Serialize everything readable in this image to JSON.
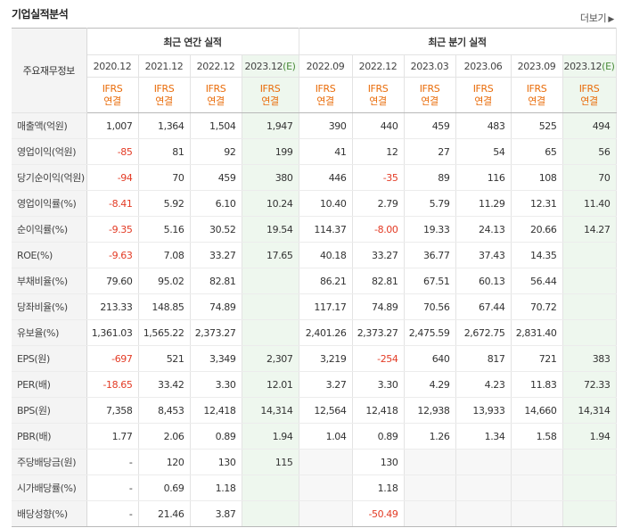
{
  "header": {
    "title": "기업실적분석",
    "more_label": "더보기",
    "more_arrow": "▶"
  },
  "table": {
    "corner_label": "주요재무정보",
    "groups": {
      "annual": "최근 연간 실적",
      "quarterly": "최근 분기 실적"
    },
    "periods": [
      {
        "label": "2020.12",
        "est": false
      },
      {
        "label": "2021.12",
        "est": false
      },
      {
        "label": "2022.12",
        "est": false
      },
      {
        "label": "2023.12",
        "est_suffix": "(E)",
        "est": true
      },
      {
        "label": "2022.09",
        "est": false
      },
      {
        "label": "2022.12",
        "est": false
      },
      {
        "label": "2023.03",
        "est": false
      },
      {
        "label": "2023.06",
        "est": false
      },
      {
        "label": "2023.09",
        "est": false
      },
      {
        "label": "2023.12",
        "est_suffix": "(E)",
        "est": true
      }
    ],
    "basis": [
      [
        "IFRS",
        "연결"
      ],
      [
        "IFRS",
        "연결"
      ],
      [
        "IFRS",
        "연결"
      ],
      [
        "IFRS",
        "연결"
      ],
      [
        "IFRS",
        "연결"
      ],
      [
        "IFRS",
        "연결"
      ],
      [
        "IFRS",
        "연결"
      ],
      [
        "IFRS",
        "연결"
      ],
      [
        "IFRS",
        "연결"
      ],
      [
        "IFRS",
        "연결"
      ]
    ],
    "rows": [
      {
        "label": "매출액(억원)",
        "values": [
          "1,007",
          "1,364",
          "1,504",
          "1,947",
          "390",
          "440",
          "459",
          "483",
          "525",
          "494"
        ]
      },
      {
        "label": "영업이익(억원)",
        "values": [
          "-85",
          "81",
          "92",
          "199",
          "41",
          "12",
          "27",
          "54",
          "65",
          "56"
        ]
      },
      {
        "label": "당기순이익(억원)",
        "values": [
          "-94",
          "70",
          "459",
          "380",
          "446",
          "-35",
          "89",
          "116",
          "108",
          "70"
        ]
      },
      {
        "label": "영업이익률(%)",
        "values": [
          "-8.41",
          "5.92",
          "6.10",
          "10.24",
          "10.40",
          "2.79",
          "5.79",
          "11.29",
          "12.31",
          "11.40"
        ]
      },
      {
        "label": "순이익률(%)",
        "values": [
          "-9.35",
          "5.16",
          "30.52",
          "19.54",
          "114.37",
          "-8.00",
          "19.33",
          "24.13",
          "20.66",
          "14.27"
        ]
      },
      {
        "label": "ROE(%)",
        "values": [
          "-9.63",
          "7.08",
          "33.27",
          "17.65",
          "40.18",
          "33.27",
          "36.77",
          "37.43",
          "14.35",
          ""
        ]
      },
      {
        "label": "부채비율(%)",
        "values": [
          "79.60",
          "95.02",
          "82.81",
          "",
          "86.21",
          "82.81",
          "67.51",
          "60.13",
          "56.44",
          ""
        ]
      },
      {
        "label": "당좌비율(%)",
        "values": [
          "213.33",
          "148.85",
          "74.89",
          "",
          "117.17",
          "74.89",
          "70.56",
          "67.44",
          "70.72",
          ""
        ]
      },
      {
        "label": "유보율(%)",
        "values": [
          "1,361.03",
          "1,565.22",
          "2,373.27",
          "",
          "2,401.26",
          "2,373.27",
          "2,475.59",
          "2,672.75",
          "2,831.40",
          ""
        ]
      },
      {
        "label": "EPS(원)",
        "values": [
          "-697",
          "521",
          "3,349",
          "2,307",
          "3,219",
          "-254",
          "640",
          "817",
          "721",
          "383"
        ]
      },
      {
        "label": "PER(배)",
        "values": [
          "-18.65",
          "33.42",
          "3.30",
          "12.01",
          "3.27",
          "3.30",
          "4.29",
          "4.23",
          "11.83",
          "72.33"
        ]
      },
      {
        "label": "BPS(원)",
        "values": [
          "7,358",
          "8,453",
          "12,418",
          "14,314",
          "12,564",
          "12,418",
          "12,938",
          "13,933",
          "14,660",
          "14,314"
        ]
      },
      {
        "label": "PBR(배)",
        "values": [
          "1.77",
          "2.06",
          "0.89",
          "1.94",
          "1.04",
          "0.89",
          "1.26",
          "1.34",
          "1.58",
          "1.94"
        ]
      },
      {
        "label": "주당배당금(원)",
        "values": [
          "-",
          "120",
          "130",
          "115",
          "",
          "130",
          "",
          "",
          "",
          ""
        ]
      },
      {
        "label": "시가배당률(%)",
        "values": [
          "-",
          "0.69",
          "1.18",
          "",
          "",
          "1.18",
          "",
          "",
          "",
          ""
        ]
      },
      {
        "label": "배당성향(%)",
        "values": [
          "-",
          "21.46",
          "3.87",
          "",
          "",
          "-50.49",
          "",
          "",
          "",
          ""
        ]
      }
    ],
    "empty_quarter_cells": [
      [
        13,
        4
      ],
      [
        13,
        6
      ],
      [
        13,
        7
      ],
      [
        13,
        8
      ],
      [
        14,
        4
      ],
      [
        14,
        6
      ],
      [
        14,
        7
      ],
      [
        14,
        8
      ],
      [
        15,
        4
      ],
      [
        15,
        6
      ],
      [
        15,
        7
      ],
      [
        15,
        8
      ]
    ],
    "colors": {
      "negative": "#e33b25",
      "basis": "#e96c0a",
      "estimate_bg": "#eef7ee",
      "estimate_label": "#4a8b3a",
      "label_bg": "#f4f4f4"
    }
  }
}
